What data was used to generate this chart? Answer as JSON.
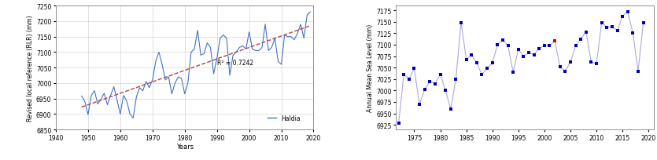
{
  "left": {
    "ylabel": "Revised local reference (RLR) (mm)",
    "xlabel": "Years",
    "xlim": [
      1940,
      2020
    ],
    "ylim": [
      6850,
      7250
    ],
    "yticks": [
      6850,
      6900,
      6950,
      7000,
      7050,
      7100,
      7150,
      7200,
      7250
    ],
    "xticks": [
      1940,
      1950,
      1960,
      1970,
      1980,
      1990,
      2000,
      2010,
      2020
    ],
    "r2_text": "R² = 0.7242",
    "legend_label": "Haldia",
    "line_color": "#4472C4",
    "trend_color": "#BF4040",
    "data": {
      "years": [
        1948,
        1949,
        1950,
        1951,
        1952,
        1953,
        1954,
        1955,
        1956,
        1957,
        1958,
        1959,
        1960,
        1961,
        1962,
        1963,
        1964,
        1965,
        1966,
        1967,
        1968,
        1969,
        1970,
        1971,
        1972,
        1973,
        1974,
        1975,
        1976,
        1977,
        1978,
        1979,
        1980,
        1981,
        1982,
        1983,
        1984,
        1985,
        1986,
        1987,
        1988,
        1989,
        1990,
        1991,
        1992,
        1993,
        1994,
        1995,
        1996,
        1997,
        1998,
        1999,
        2000,
        2001,
        2002,
        2003,
        2004,
        2005,
        2006,
        2007,
        2008,
        2009,
        2010,
        2011,
        2012,
        2013,
        2014,
        2015,
        2016,
        2017,
        2018,
        2019
      ],
      "values": [
        6958,
        6940,
        6898,
        6960,
        6975,
        6932,
        6948,
        6967,
        6930,
        6960,
        6988,
        6945,
        6900,
        6960,
        6942,
        6900,
        6887,
        6955,
        6985,
        6975,
        7005,
        6985,
        7010,
        7070,
        7100,
        7060,
        7010,
        7020,
        6965,
        7000,
        7020,
        7015,
        6965,
        7000,
        7100,
        7110,
        7170,
        7090,
        7095,
        7130,
        7115,
        7030,
        7080,
        7145,
        7155,
        7145,
        7025,
        7090,
        7100,
        7115,
        7120,
        7110,
        7165,
        7110,
        7105,
        7105,
        7115,
        7190,
        7105,
        7115,
        7145,
        7070,
        7060,
        7155,
        7150,
        7150,
        7140,
        7160,
        7190,
        7145,
        7220,
        7230
      ]
    }
  },
  "right": {
    "ylabel": "Annual Mean Sea Level (mm)",
    "xlim": [
      1971.5,
      2021
    ],
    "ylim": [
      6915,
      7185
    ],
    "yticks": [
      6925,
      6950,
      6975,
      7000,
      7025,
      7050,
      7075,
      7100,
      7125,
      7150,
      7175
    ],
    "xticks": [
      1975,
      1980,
      1985,
      1990,
      1995,
      2000,
      2005,
      2010,
      2015,
      2020
    ],
    "line_color": "#AAAADD",
    "dot_color": "#0000BB",
    "red_dot_color": "#DD0000",
    "data": {
      "years": [
        1972,
        1973,
        1974,
        1975,
        1976,
        1977,
        1978,
        1979,
        1980,
        1981,
        1982,
        1983,
        1984,
        1985,
        1986,
        1987,
        1988,
        1989,
        1990,
        1991,
        1992,
        1993,
        1994,
        1995,
        1996,
        1997,
        1998,
        1999,
        2000,
        2001,
        2002,
        2003,
        2004,
        2005,
        2006,
        2007,
        2008,
        2009,
        2010,
        2011,
        2012,
        2013,
        2014,
        2015,
        2016,
        2017,
        2018,
        2019
      ],
      "values": [
        6928,
        7035,
        7025,
        7048,
        6970,
        7002,
        7020,
        7015,
        7035,
        7000,
        6960,
        7025,
        7148,
        7068,
        7078,
        7060,
        7035,
        7048,
        7060,
        7100,
        7110,
        7098,
        7040,
        7090,
        7075,
        7082,
        7078,
        7092,
        7098,
        7098,
        7108,
        7052,
        7042,
        7062,
        7098,
        7112,
        7128,
        7062,
        7058,
        7148,
        7138,
        7140,
        7130,
        7162,
        7172,
        7125,
        7042,
        7148
      ],
      "red_year": 2002
    }
  },
  "bg_color": "#FFFFFF",
  "border_color": "#808080"
}
